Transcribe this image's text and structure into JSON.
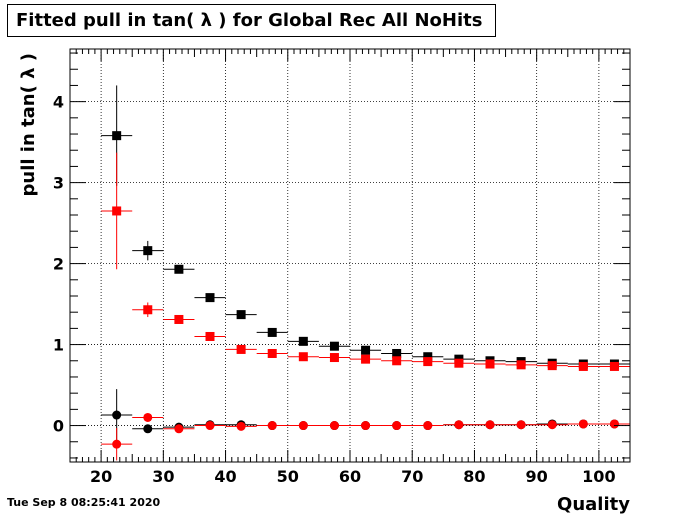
{
  "title": "Fitted pull in tan( λ ) for Global Rec All NoHits",
  "footer": {
    "date": "Tue Sep  8 08:25:41 2020"
  },
  "colors": {
    "series_black": "#000000",
    "series_red": "#ff0000",
    "grid": "#000000"
  },
  "chart_data": {
    "type": "scatter",
    "title": "Fitted pull in tan( λ ) for Global Rec All NoHits",
    "xlabel": "Quality",
    "ylabel": "pull in tan( λ )",
    "xlim": [
      15,
      105
    ],
    "ylim": [
      -0.45,
      4.65
    ],
    "grid": true,
    "x_ticks": [
      20,
      30,
      40,
      50,
      60,
      70,
      80,
      90,
      100
    ],
    "y_ticks": [
      0,
      1,
      2,
      3,
      4
    ],
    "bin_halfwidth": 2.5,
    "series": [
      {
        "marker": "square",
        "color": "#000000",
        "x": [
          22.5,
          27.5,
          32.5,
          37.5,
          42.5,
          47.5,
          52.5,
          57.5,
          62.5,
          67.5,
          72.5,
          77.5,
          82.5,
          87.5,
          92.5,
          97.5,
          102.5
        ],
        "y": [
          3.58,
          2.16,
          1.93,
          1.58,
          1.37,
          1.15,
          1.04,
          0.98,
          0.93,
          0.89,
          0.85,
          0.82,
          0.8,
          0.79,
          0.77,
          0.76,
          0.76
        ],
        "yerr": [
          0.62,
          0.12,
          0.05,
          0.03,
          0.02,
          0.02,
          0.015,
          0.015,
          0.01,
          0.01,
          0.01,
          0.01,
          0.01,
          0.01,
          0.01,
          0.01,
          0.01
        ]
      },
      {
        "marker": "square",
        "color": "#ff0000",
        "x": [
          22.5,
          27.5,
          32.5,
          37.5,
          42.5,
          47.5,
          52.5,
          57.5,
          62.5,
          67.5,
          72.5,
          77.5,
          82.5,
          87.5,
          92.5,
          97.5,
          102.5
        ],
        "y": [
          2.65,
          1.43,
          1.31,
          1.1,
          0.94,
          0.89,
          0.85,
          0.84,
          0.82,
          0.8,
          0.79,
          0.77,
          0.76,
          0.75,
          0.74,
          0.73,
          0.73
        ],
        "yerr": [
          0.72,
          0.09,
          0.04,
          0.03,
          0.02,
          0.02,
          0.015,
          0.015,
          0.01,
          0.01,
          0.01,
          0.01,
          0.01,
          0.01,
          0.01,
          0.01,
          0.01
        ]
      },
      {
        "marker": "circle",
        "color": "#000000",
        "x": [
          22.5,
          27.5,
          32.5,
          37.5,
          42.5,
          47.5,
          52.5,
          57.5,
          62.5,
          67.5,
          72.5,
          77.5,
          82.5,
          87.5,
          92.5,
          97.5,
          102.5
        ],
        "y": [
          0.13,
          -0.04,
          -0.02,
          0.01,
          0.01,
          0.0,
          0.0,
          0.0,
          0.0,
          0.0,
          0.0,
          0.01,
          0.01,
          0.01,
          0.02,
          0.02,
          0.02
        ],
        "yerr": [
          0.32,
          0.05,
          0.03,
          0.02,
          0.015,
          0.01,
          0.01,
          0.01,
          0.01,
          0.01,
          0.01,
          0.01,
          0.01,
          0.01,
          0.01,
          0.01,
          0.01
        ]
      },
      {
        "marker": "circle",
        "color": "#ff0000",
        "x": [
          22.5,
          27.5,
          32.5,
          37.5,
          42.5,
          47.5,
          52.5,
          57.5,
          62.5,
          67.5,
          72.5,
          77.5,
          82.5,
          87.5,
          92.5,
          97.5,
          102.5
        ],
        "y": [
          -0.23,
          0.1,
          -0.04,
          0.0,
          -0.01,
          0.0,
          0.0,
          0.0,
          0.0,
          0.0,
          0.0,
          0.01,
          0.01,
          0.01,
          0.01,
          0.02,
          0.02
        ],
        "yerr": [
          0.2,
          0.05,
          0.03,
          0.02,
          0.015,
          0.01,
          0.01,
          0.01,
          0.01,
          0.01,
          0.01,
          0.01,
          0.01,
          0.01,
          0.01,
          0.01,
          0.01
        ]
      }
    ]
  }
}
